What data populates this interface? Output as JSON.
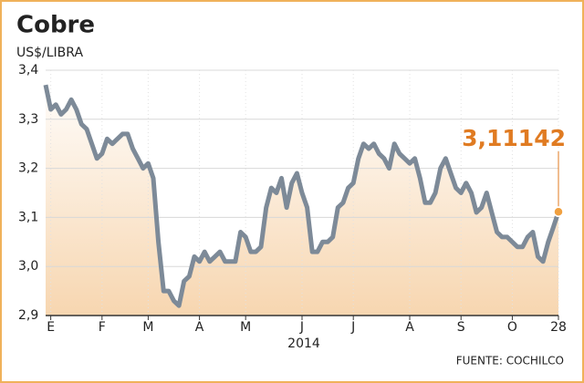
{
  "chart_data": {
    "type": "line",
    "title": "Cobre",
    "subtitle": "US$/LIBRA",
    "x_label": "2014",
    "source": "FUENTE: COCHILCO",
    "values": [
      3.37,
      3.32,
      3.33,
      3.31,
      3.32,
      3.34,
      3.32,
      3.29,
      3.28,
      3.25,
      3.22,
      3.23,
      3.26,
      3.25,
      3.26,
      3.27,
      3.27,
      3.24,
      3.22,
      3.2,
      3.21,
      3.18,
      3.05,
      2.95,
      2.95,
      2.93,
      2.92,
      2.97,
      2.98,
      3.02,
      3.01,
      3.03,
      3.01,
      3.02,
      3.03,
      3.01,
      3.01,
      3.01,
      3.07,
      3.06,
      3.03,
      3.03,
      3.04,
      3.12,
      3.16,
      3.15,
      3.18,
      3.12,
      3.17,
      3.19,
      3.15,
      3.12,
      3.03,
      3.03,
      3.05,
      3.05,
      3.06,
      3.12,
      3.13,
      3.16,
      3.17,
      3.22,
      3.25,
      3.24,
      3.25,
      3.23,
      3.22,
      3.2,
      3.25,
      3.23,
      3.22,
      3.21,
      3.22,
      3.18,
      3.13,
      3.13,
      3.15,
      3.2,
      3.22,
      3.19,
      3.16,
      3.15,
      3.17,
      3.15,
      3.11,
      3.12,
      3.15,
      3.11,
      3.07,
      3.06,
      3.06,
      3.05,
      3.04,
      3.04,
      3.06,
      3.07,
      3.02,
      3.01,
      3.05,
      3.08,
      3.11142
    ],
    "value_labels": [
      null,
      null,
      null,
      null,
      null,
      null,
      null,
      null,
      null,
      null,
      null,
      null,
      null,
      null,
      null,
      null,
      null,
      null,
      null,
      null,
      null,
      null,
      null,
      null,
      null,
      null,
      null,
      null,
      null,
      null,
      null,
      null,
      null,
      null,
      null,
      null,
      null,
      null,
      null,
      null,
      null,
      null,
      null,
      null,
      null,
      null,
      null,
      null,
      null,
      null,
      null,
      null,
      null,
      null,
      null,
      null,
      null,
      null,
      null,
      null,
      null,
      null,
      null,
      null,
      null,
      null,
      null,
      null,
      null,
      null,
      null,
      null,
      null,
      null,
      null,
      null,
      null,
      null,
      null,
      null,
      null,
      null,
      null,
      null,
      null,
      null,
      null,
      null,
      null,
      null,
      null,
      null,
      null,
      null,
      null,
      null,
      null,
      null,
      null,
      null,
      "3,11142"
    ],
    "color": "#7d8a98",
    "label_color": "#e07b22",
    "xlim": [
      0,
      100
    ],
    "xticks": [
      {
        "value": 1,
        "label": "E"
      },
      {
        "value": 11,
        "label": "F"
      },
      {
        "value": 20,
        "label": "M"
      },
      {
        "value": 30,
        "label": "A"
      },
      {
        "value": 39,
        "label": "M"
      },
      {
        "value": 50,
        "label": "J"
      },
      {
        "value": 60,
        "label": "J"
      },
      {
        "value": 71,
        "label": "A"
      },
      {
        "value": 81,
        "label": "S"
      },
      {
        "value": 91,
        "label": "O"
      },
      {
        "value": 100,
        "label": "28"
      }
    ],
    "ylim": [
      2.9,
      3.4
    ],
    "yticks": [
      {
        "value": 2.9,
        "label": "2,9"
      },
      {
        "value": 3.0,
        "label": "3,0"
      },
      {
        "value": 3.1,
        "label": "3,1"
      },
      {
        "value": 3.2,
        "label": "3,2"
      },
      {
        "value": 3.3,
        "label": "3,3"
      },
      {
        "value": 3.4,
        "label": "3,4"
      }
    ],
    "grid": true
  }
}
